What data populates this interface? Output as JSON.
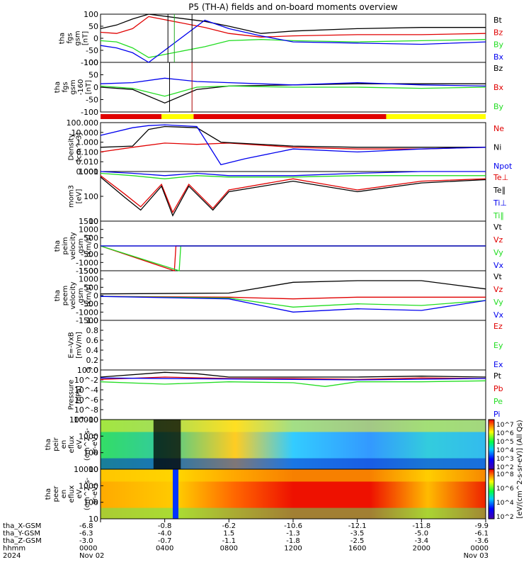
{
  "title": "P5 (TH-A) fields and on-board moments overview",
  "colors": {
    "black": "#000000",
    "red": "#e00000",
    "green": "#22dd22",
    "blue": "#0000ee",
    "yellow": "#ffff00"
  },
  "panels": [
    {
      "id": "fgs-gsm",
      "ylabel": [
        "tha",
        "fgs",
        "gsm",
        "[nT]"
      ],
      "ticks": [
        "100",
        "50",
        "0",
        "-50",
        "-100"
      ],
      "yrange": [
        -100,
        100
      ],
      "legend": [
        {
          "text": "Bt",
          "color": "black"
        },
        {
          "text": "Bz",
          "color": "red"
        },
        {
          "text": "By",
          "color": "green"
        },
        {
          "text": "Bx",
          "color": "blue"
        }
      ]
    },
    {
      "id": "fgs-gse",
      "ylabel": [
        "tha",
        "fgs",
        "gsm",
        "-160",
        "[nT]"
      ],
      "ticks": [
        "100",
        "50",
        "0",
        "-50",
        "-100"
      ],
      "yrange": [
        -100,
        100
      ],
      "legend": [
        {
          "text": "Bz",
          "color": "black"
        },
        {
          "text": "Bx",
          "color": "red"
        },
        {
          "text": "By",
          "color": "green"
        }
      ]
    },
    {
      "id": "density",
      "ylabel": [
        "Density",
        "[cm^-3]"
      ],
      "ticks": [
        "100.000",
        "10.000",
        "1.000",
        "0.100",
        "0.010",
        "0.001"
      ],
      "yrange": [
        -3,
        2
      ],
      "legend": [
        {
          "text": "Ne",
          "color": "red"
        },
        {
          "text": "Ni",
          "color": "black"
        },
        {
          "text": "Npot",
          "color": "blue"
        }
      ]
    },
    {
      "id": "temperature",
      "ylabel": [
        "mom3",
        "[eV]"
      ],
      "ticks": [
        "1000",
        "100",
        "10"
      ],
      "yrange": [
        1,
        3.5
      ],
      "legend": [
        {
          "text": "Te⊥",
          "color": "red"
        },
        {
          "text": "Te∥",
          "color": "black"
        },
        {
          "text": "Ti⊥",
          "color": "blue"
        },
        {
          "text": "Ti∥",
          "color": "green"
        }
      ]
    },
    {
      "id": "ion-velocity",
      "ylabel": [
        "tha",
        "peim",
        "velocity",
        "gsm",
        "[km/s]"
      ],
      "ticks": [
        "1500",
        "1000",
        "500",
        "0",
        "-500",
        "-1000",
        "-1500"
      ],
      "yrange": [
        -1500,
        1500
      ],
      "legend": [
        {
          "text": "Vt",
          "color": "black"
        },
        {
          "text": "Vz",
          "color": "red"
        },
        {
          "text": "Vy",
          "color": "green"
        },
        {
          "text": "Vx",
          "color": "blue"
        }
      ]
    },
    {
      "id": "electron-velocity",
      "ylabel": [
        "tha",
        "peem",
        "velocity",
        "gsm",
        "[km/s]"
      ],
      "ticks": [
        "1500",
        "1000",
        "500",
        "0",
        "-500",
        "-1000",
        "-1500"
      ],
      "yrange": [
        -1500,
        1500
      ],
      "legend": [
        {
          "text": "Vt",
          "color": "black"
        },
        {
          "text": "Vz",
          "color": "red"
        },
        {
          "text": "Vy",
          "color": "green"
        },
        {
          "text": "Vx",
          "color": "blue"
        }
      ]
    },
    {
      "id": "e-field",
      "ylabel": [
        "E=-VxB",
        "[mV/m]"
      ],
      "ticks": [
        "1.0",
        "0.8",
        "0.6",
        "0.4",
        "0.2",
        "0.0"
      ],
      "yrange": [
        0,
        1
      ],
      "legend": [
        {
          "text": "Ez",
          "color": "red"
        },
        {
          "text": "Ey",
          "color": "green"
        },
        {
          "text": "Ex",
          "color": "blue"
        }
      ]
    },
    {
      "id": "pressure",
      "ylabel": [
        "Pressure",
        "[nPa]"
      ],
      "ticks": [
        "10^0",
        "10^-2",
        "10^-4",
        "10^-6",
        "10^-8",
        "10^-10"
      ],
      "yrange": [
        -10,
        0
      ],
      "legend": [
        {
          "text": "Pt",
          "color": "black"
        },
        {
          "text": "Pb",
          "color": "red"
        },
        {
          "text": "Pe",
          "color": "green"
        },
        {
          "text": "Pi",
          "color": "blue"
        }
      ]
    },
    {
      "id": "ion-spectrogram",
      "ylabel": [
        "tha",
        "peir",
        "en",
        "eflux",
        "eV",
        "(cm^2-s-",
        "sr-eV)"
      ],
      "ticks": [
        "10000",
        "1000",
        "100",
        "10"
      ]
    },
    {
      "id": "electron-spectrogram",
      "ylabel": [
        "tha",
        "peer",
        "en",
        "eflux",
        "eV",
        "(cm^2-s-",
        "sr-eV)"
      ],
      "ticks": [
        "10000",
        "1000",
        "100",
        "10"
      ]
    }
  ],
  "colorbar": {
    "label": "[eV/(cm^2-s-sr-eV)] (All Qs)",
    "ticks_top": [
      "10^7",
      "10^6",
      "10^5",
      "10^4",
      "10^3",
      "10^2"
    ],
    "ticks_bottom": [
      "10^8",
      "10^6",
      "10^4",
      "10^2"
    ]
  },
  "xaxis": {
    "row_labels": [
      "tha_X-GSM",
      "tha_Y-GSM",
      "tha_Z-GSM",
      "hhmm",
      "2024"
    ],
    "columns": [
      {
        "x": "-6.8",
        "y": "-6.3",
        "z": "-3.0",
        "hhmm": "0000",
        "date": "Nov 02"
      },
      {
        "x": "-0.8",
        "y": "-4.0",
        "z": "-0.7",
        "hhmm": "0400",
        "date": ""
      },
      {
        "x": "-6.2",
        "y": "1.5",
        "z": "-1.1",
        "hhmm": "0800",
        "date": ""
      },
      {
        "x": "-10.6",
        "y": "-1.3",
        "z": "-1.8",
        "hhmm": "1200",
        "date": ""
      },
      {
        "x": "-12.1",
        "y": "-3.5",
        "z": "-2.5",
        "hhmm": "1600",
        "date": ""
      },
      {
        "x": "-11.8",
        "y": "-5.0",
        "z": "-3.4",
        "hhmm": "2000",
        "date": ""
      },
      {
        "x": "-9.9",
        "y": "-6.1",
        "z": "-3.6",
        "hhmm": "0000",
        "date": "Nov 03"
      }
    ]
  },
  "chart_data": {
    "type": "line",
    "x_hours": [
      0,
      4,
      8,
      12,
      16,
      20,
      24
    ],
    "status_bar": [
      {
        "from": 0,
        "to": 3.8,
        "color": "red"
      },
      {
        "from": 3.8,
        "to": 5.8,
        "color": "yellow"
      },
      {
        "from": 5.8,
        "to": 17.8,
        "color": "red"
      },
      {
        "from": 17.8,
        "to": 24,
        "color": "yellow"
      }
    ],
    "series": {
      "fgs_gsm": {
        "Bt": [
          [
            0,
            40
          ],
          [
            1,
            55
          ],
          [
            2,
            80
          ],
          [
            3,
            100
          ],
          [
            6.5,
            70
          ],
          [
            8,
            50
          ],
          [
            10,
            20
          ],
          [
            12,
            30
          ],
          [
            16,
            40
          ],
          [
            20,
            45
          ],
          [
            24,
            45
          ]
        ],
        "Bz": [
          [
            0,
            25
          ],
          [
            1,
            20
          ],
          [
            2,
            40
          ],
          [
            3,
            90
          ],
          [
            6.5,
            45
          ],
          [
            8,
            20
          ],
          [
            10,
            5
          ],
          [
            12,
            10
          ],
          [
            16,
            15
          ],
          [
            20,
            15
          ],
          [
            24,
            20
          ]
        ],
        "By": [
          [
            0,
            -10
          ],
          [
            1,
            -15
          ],
          [
            2,
            -40
          ],
          [
            3,
            -80
          ],
          [
            6.5,
            -35
          ],
          [
            8,
            -10
          ],
          [
            10,
            -5
          ],
          [
            12,
            -10
          ],
          [
            16,
            -15
          ],
          [
            20,
            -10
          ],
          [
            24,
            -5
          ]
        ],
        "Bx": [
          [
            0,
            -30
          ],
          [
            1,
            -40
          ],
          [
            2,
            -60
          ],
          [
            3,
            -100
          ],
          [
            6.5,
            75
          ],
          [
            8,
            40
          ],
          [
            10,
            10
          ],
          [
            12,
            -15
          ],
          [
            16,
            -20
          ],
          [
            20,
            -25
          ],
          [
            24,
            -15
          ]
        ]
      },
      "fgs_gse": {
        "Bz": [
          [
            0,
            -10
          ],
          [
            2,
            -20
          ],
          [
            4,
            -80
          ],
          [
            6,
            -20
          ],
          [
            8,
            -5
          ],
          [
            12,
            0
          ],
          [
            16,
            5
          ],
          [
            20,
            5
          ],
          [
            24,
            5
          ]
        ],
        "Bx": [
          [
            0,
            5
          ],
          [
            2,
            10
          ],
          [
            4,
            30
          ],
          [
            6,
            15
          ],
          [
            8,
            10
          ],
          [
            12,
            0
          ],
          [
            16,
            10
          ],
          [
            20,
            0
          ],
          [
            24,
            -5
          ]
        ],
        "By": [
          [
            0,
            -5
          ],
          [
            2,
            -15
          ],
          [
            4,
            -50
          ],
          [
            6,
            -10
          ],
          [
            8,
            -5
          ],
          [
            12,
            -10
          ],
          [
            16,
            -10
          ],
          [
            20,
            -15
          ],
          [
            24,
            -10
          ]
        ]
      },
      "density": {
        "Ne": [
          [
            0,
            0.1
          ],
          [
            2,
            0.3
          ],
          [
            4,
            0.8
          ],
          [
            6,
            0.6
          ],
          [
            8,
            0.8
          ],
          [
            12,
            0.3
          ],
          [
            16,
            0.2
          ],
          [
            20,
            0.2
          ],
          [
            24,
            0.3
          ]
        ],
        "Ni": [
          [
            0,
            0.3
          ],
          [
            2,
            0.4
          ],
          [
            3,
            20
          ],
          [
            4,
            40
          ],
          [
            6,
            30
          ],
          [
            7.5,
            1.0
          ],
          [
            12,
            0.4
          ],
          [
            16,
            0.3
          ],
          [
            20,
            0.3
          ],
          [
            24,
            0.3
          ]
        ],
        "Npot": [
          [
            0,
            5
          ],
          [
            2,
            30
          ],
          [
            3,
            50
          ],
          [
            4,
            60
          ],
          [
            6,
            40
          ],
          [
            7.5,
            0.005
          ],
          [
            9,
            0.02
          ],
          [
            12,
            0.2
          ],
          [
            16,
            0.1
          ],
          [
            20,
            0.2
          ],
          [
            24,
            0.3
          ]
        ]
      },
      "temperature": {
        "Te_perp": [
          [
            0,
            3000
          ],
          [
            1.5,
            300
          ],
          [
            2.5,
            60
          ],
          [
            3.8,
            1000
          ],
          [
            4.5,
            30
          ],
          [
            5.5,
            1000
          ],
          [
            7,
            50
          ],
          [
            8,
            500
          ],
          [
            12,
            2000
          ],
          [
            16,
            500
          ],
          [
            20,
            1500
          ],
          [
            24,
            2000
          ]
        ],
        "Te_par": [
          [
            0,
            2500
          ],
          [
            1.5,
            200
          ],
          [
            2.5,
            40
          ],
          [
            3.8,
            800
          ],
          [
            4.5,
            20
          ],
          [
            5.5,
            800
          ],
          [
            7,
            40
          ],
          [
            8,
            400
          ],
          [
            12,
            1500
          ],
          [
            16,
            400
          ],
          [
            20,
            1200
          ],
          [
            24,
            1800
          ]
        ],
        "Ti_perp": [
          [
            0,
            5000
          ],
          [
            2,
            4000
          ],
          [
            4,
            3000
          ],
          [
            6,
            4000
          ],
          [
            8,
            3000
          ],
          [
            12,
            3000
          ],
          [
            16,
            4000
          ],
          [
            20,
            5000
          ],
          [
            24,
            5000
          ]
        ],
        "Ti_par": [
          [
            0,
            4000
          ],
          [
            2,
            3000
          ],
          [
            4,
            2000
          ],
          [
            6,
            3000
          ],
          [
            8,
            2500
          ],
          [
            12,
            2500
          ],
          [
            16,
            3000
          ],
          [
            20,
            3000
          ],
          [
            24,
            3000
          ]
        ]
      },
      "ion_velocity": {
        "Vt": [
          [
            0,
            0
          ],
          [
            24,
            0
          ]
        ],
        "Vz": [
          [
            0,
            0
          ],
          [
            4.6,
            -1500
          ],
          [
            4.7,
            0
          ],
          [
            24,
            0
          ]
        ],
        "Vy": [
          [
            0,
            0
          ],
          [
            4.9,
            -1500
          ],
          [
            5.0,
            0
          ],
          [
            24,
            0
          ]
        ],
        "Vx": [
          [
            0,
            0
          ],
          [
            24,
            0
          ]
        ]
      },
      "electron_velocity": {
        "Vt": [
          [
            0,
            100
          ],
          [
            8,
            150
          ],
          [
            12,
            800
          ],
          [
            16,
            900
          ],
          [
            20,
            900
          ],
          [
            24,
            400
          ]
        ],
        "Vz": [
          [
            0,
            -50
          ],
          [
            8,
            -100
          ],
          [
            12,
            -200
          ],
          [
            16,
            -100
          ],
          [
            20,
            -100
          ],
          [
            24,
            -100
          ]
        ],
        "Vy": [
          [
            0,
            -50
          ],
          [
            8,
            -150
          ],
          [
            12,
            -700
          ],
          [
            16,
            -500
          ],
          [
            20,
            -600
          ],
          [
            24,
            -300
          ]
        ],
        "Vx": [
          [
            0,
            -50
          ],
          [
            8,
            -200
          ],
          [
            12,
            -1000
          ],
          [
            16,
            -800
          ],
          [
            20,
            -900
          ],
          [
            24,
            -300
          ]
        ]
      },
      "pressure_exp": {
        "Pt": [
          [
            0,
            -1
          ],
          [
            4,
            0
          ],
          [
            6,
            -0.3
          ],
          [
            8,
            -1
          ],
          [
            12,
            -1
          ],
          [
            16,
            -1
          ],
          [
            20,
            -0.8
          ],
          [
            24,
            -1
          ]
        ],
        "Pb": [
          [
            0,
            -1.5
          ],
          [
            4,
            -1
          ],
          [
            8,
            -1.3
          ],
          [
            12,
            -1.3
          ],
          [
            16,
            -1.5
          ],
          [
            20,
            -1.2
          ],
          [
            24,
            -1.3
          ]
        ],
        "Pe": [
          [
            0,
            -2
          ],
          [
            4,
            -2.5
          ],
          [
            8,
            -2
          ],
          [
            12,
            -2.2
          ],
          [
            14,
            -3
          ],
          [
            16,
            -2
          ],
          [
            20,
            -2
          ],
          [
            24,
            -1.8
          ]
        ],
        "Pi": [
          [
            0,
            -1.2
          ],
          [
            8,
            -1.4
          ],
          [
            12,
            -1.5
          ],
          [
            16,
            -1.6
          ],
          [
            24,
            -1.3
          ]
        ]
      }
    }
  }
}
